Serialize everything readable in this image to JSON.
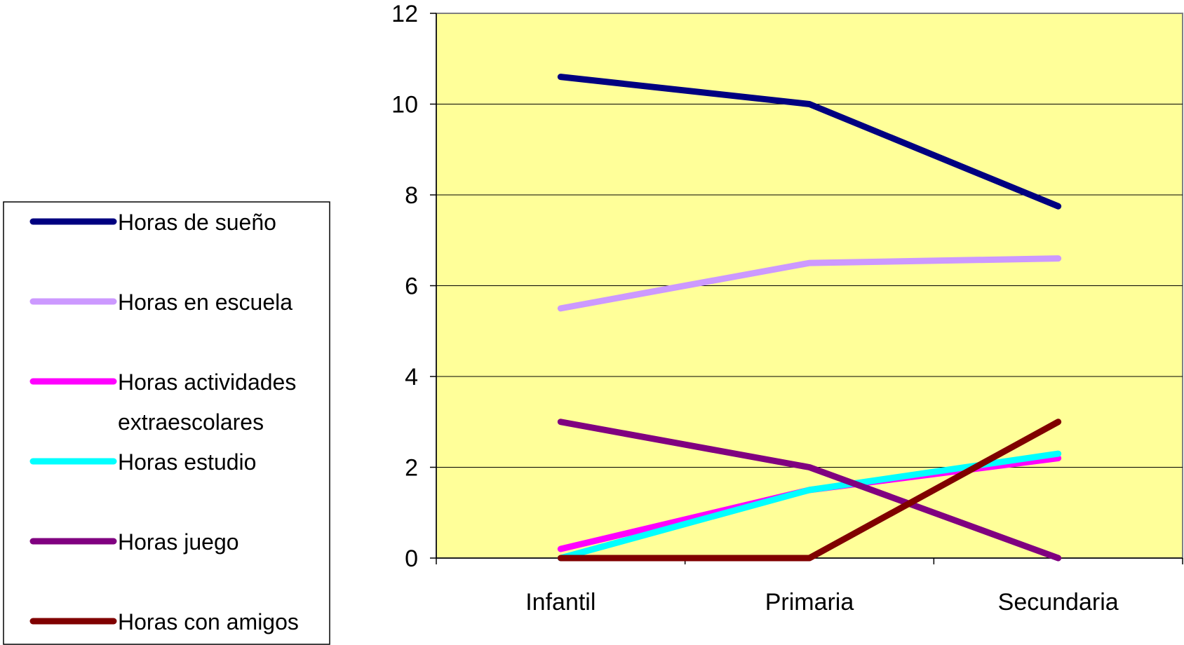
{
  "chart_data": {
    "type": "line",
    "categories": [
      "Infantil",
      "Primaria",
      "Secundaria"
    ],
    "ylim": [
      0,
      12
    ],
    "yticks": [
      0,
      2,
      4,
      6,
      8,
      10,
      12
    ],
    "grid": true,
    "legend_position": "left",
    "plot_background": "#ffff99",
    "series": [
      {
        "name": "Horas de sueño",
        "color": "#000080",
        "values": [
          10.6,
          10.0,
          7.75
        ]
      },
      {
        "name": "Horas en escuela",
        "color": "#cc99ff",
        "values": [
          5.5,
          6.5,
          6.6
        ]
      },
      {
        "name": "Horas actividades extraescolares",
        "color": "#ff00ff",
        "values": [
          0.2,
          1.5,
          2.2
        ]
      },
      {
        "name": "Horas estudio",
        "color": "#00ffff",
        "values": [
          0.0,
          1.5,
          2.3
        ]
      },
      {
        "name": "Horas juego",
        "color": "#800080",
        "values": [
          3.0,
          2.0,
          0.0
        ]
      },
      {
        "name": "Horas con amigos",
        "color": "#800000",
        "values": [
          0.0,
          0.0,
          3.0
        ]
      }
    ]
  }
}
